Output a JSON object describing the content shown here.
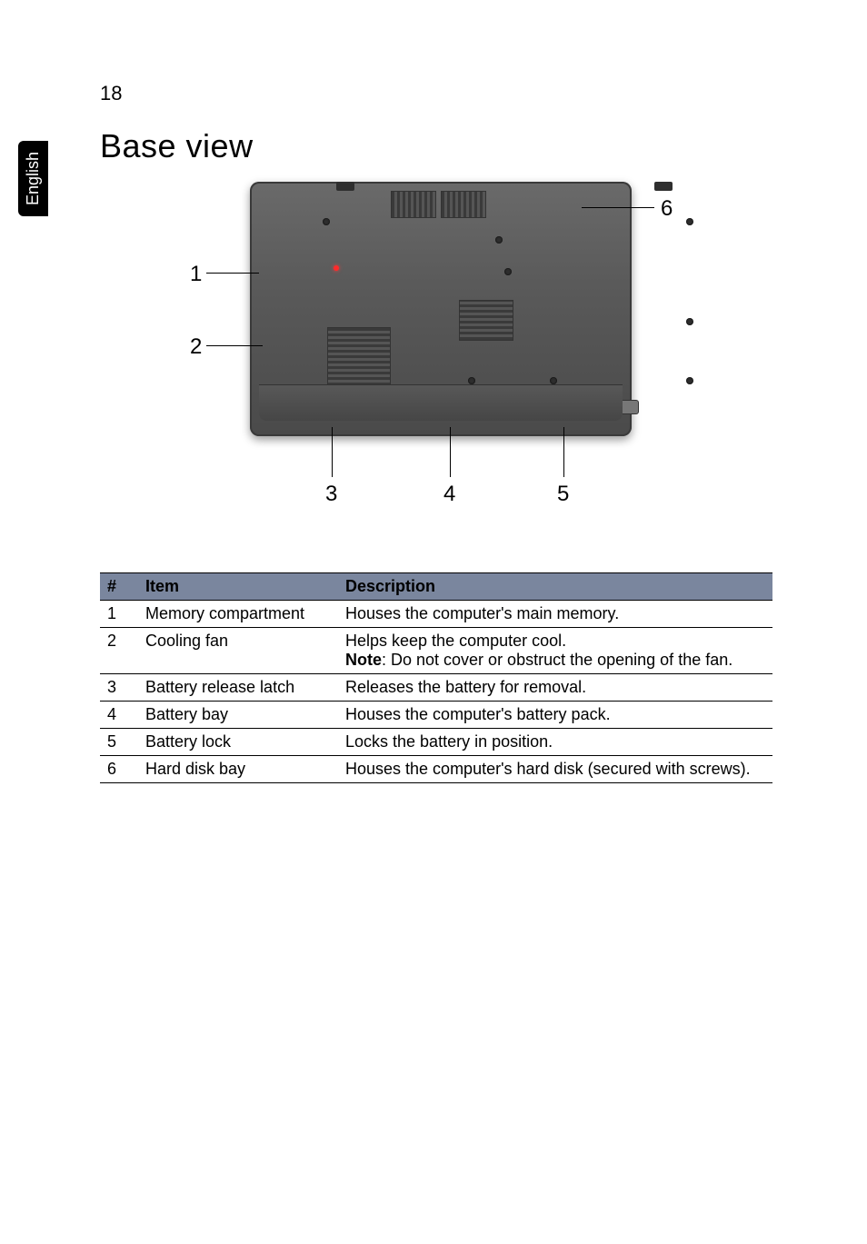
{
  "page": {
    "number": "18",
    "side_tab": "English",
    "heading": "Base view"
  },
  "diagram": {
    "callouts": {
      "c1": "1",
      "c2": "2",
      "c3": "3",
      "c4": "4",
      "c5": "5",
      "c6": "6"
    },
    "colors": {
      "body_gradient_top": "#6a6a6a",
      "body_gradient_bottom": "#4a4a4a",
      "vent_dark": "#3a3a3a",
      "vent_light": "#555555",
      "indicator": "#ff2a2a",
      "line": "#000000"
    }
  },
  "table": {
    "headers": {
      "num": "#",
      "item": "Item",
      "desc": "Description"
    },
    "rows": [
      {
        "num": "1",
        "item": "Memory compartment",
        "desc": "Houses the computer's main memory."
      },
      {
        "num": "2",
        "item": "Cooling fan",
        "desc_l1": "Helps keep the computer cool.",
        "note_label": "Note",
        "desc_l2": ": Do not cover or obstruct the opening of the fan."
      },
      {
        "num": "3",
        "item": "Battery release latch",
        "desc": "Releases the battery for removal."
      },
      {
        "num": "4",
        "item": "Battery bay",
        "desc": "Houses the computer's battery pack."
      },
      {
        "num": "5",
        "item": "Battery lock",
        "desc": "Locks the battery in position."
      },
      {
        "num": "6",
        "item": "Hard disk bay",
        "desc": "Houses the computer's hard disk (secured with screws)."
      }
    ]
  }
}
